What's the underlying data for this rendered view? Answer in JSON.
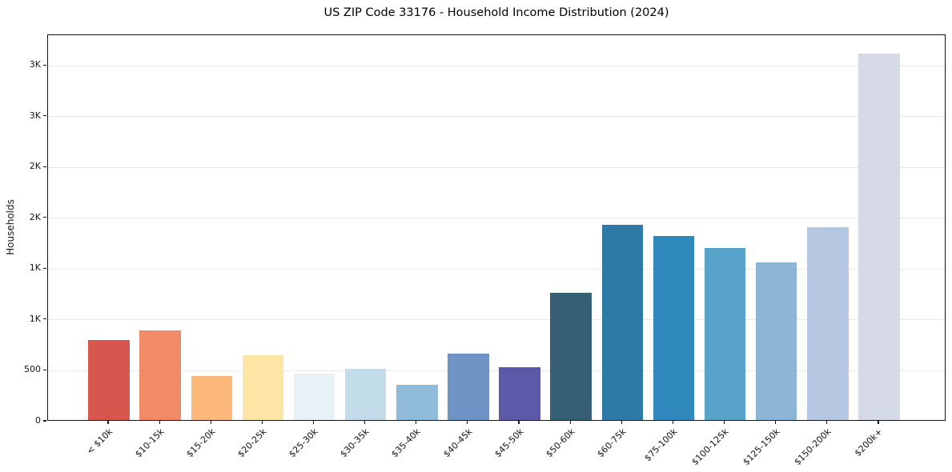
{
  "title": "US ZIP Code 33176 - Household Income Distribution (2024)",
  "chart_data": {
    "type": "bar",
    "title": "US ZIP Code 33176 - Household Income Distribution (2024)",
    "xlabel": "",
    "ylabel": "Households",
    "categories": [
      "< $10k",
      "$10-15k",
      "$15-20k",
      "$20-25k",
      "$25-30k",
      "$30-35k",
      "$35-40k",
      "$40-45k",
      "$45-50k",
      "$50-60k",
      "$60-75k",
      "$75-100k",
      "$100-125k",
      "$125-150k",
      "$150-200k",
      "$200k+"
    ],
    "values": [
      790,
      885,
      430,
      635,
      460,
      505,
      350,
      655,
      520,
      1250,
      1920,
      1810,
      1695,
      1550,
      1900,
      3600
    ],
    "bar_colors": [
      "#d7574f",
      "#f18a67",
      "#fbb87a",
      "#fde5a5",
      "#e7f2f6",
      "#c2dde9",
      "#90bbd9",
      "#6e93c4",
      "#5b59a8",
      "#386074",
      "#2e7aa6",
      "#2f89bd",
      "#58a3ca",
      "#8db5d6",
      "#b6c8e1",
      "#d6d9e6"
    ],
    "ylim": [
      0,
      3800
    ],
    "ytick_values": [
      0,
      500,
      1000,
      1500,
      2000,
      2500,
      3000,
      3500
    ],
    "ytick_labels": [
      "0",
      "500",
      "1K",
      "1K",
      "2K",
      "2K",
      "3K",
      "3K"
    ],
    "grid": "horizontal-light-gray",
    "legend": "none",
    "background": "#ffffff",
    "spine_color": "#141414",
    "gridline_color": "#e8e8e8"
  }
}
